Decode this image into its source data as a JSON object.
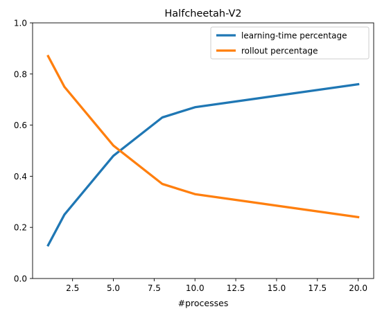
{
  "chart_data": {
    "type": "line",
    "title": "Halfcheetah-V2",
    "xlabel": "#processes",
    "ylabel": "",
    "xlim": [
      0.05,
      20.95
    ],
    "ylim": [
      0,
      1.0
    ],
    "xticks": [
      2.5,
      5.0,
      7.5,
      10.0,
      12.5,
      15.0,
      17.5,
      20.0
    ],
    "xtick_labels": [
      "2.5",
      "5.0",
      "7.5",
      "10.0",
      "12.5",
      "15.0",
      "17.5",
      "20.0"
    ],
    "yticks": [
      0.0,
      0.2,
      0.4,
      0.6,
      0.8,
      1.0
    ],
    "ytick_labels": [
      "0.0",
      "0.2",
      "0.4",
      "0.6",
      "0.8",
      "1.0"
    ],
    "grid": false,
    "legend_position": "upper right",
    "series": [
      {
        "name": "learning-time percentage",
        "color": "#1f77b4",
        "x": [
          1,
          2,
          5,
          8,
          10,
          20
        ],
        "y": [
          0.13,
          0.25,
          0.48,
          0.63,
          0.67,
          0.76
        ]
      },
      {
        "name": "rollout percentage",
        "color": "#ff7f0e",
        "x": [
          1,
          2,
          5,
          8,
          10,
          20
        ],
        "y": [
          0.87,
          0.75,
          0.52,
          0.37,
          0.33,
          0.24
        ]
      }
    ]
  }
}
